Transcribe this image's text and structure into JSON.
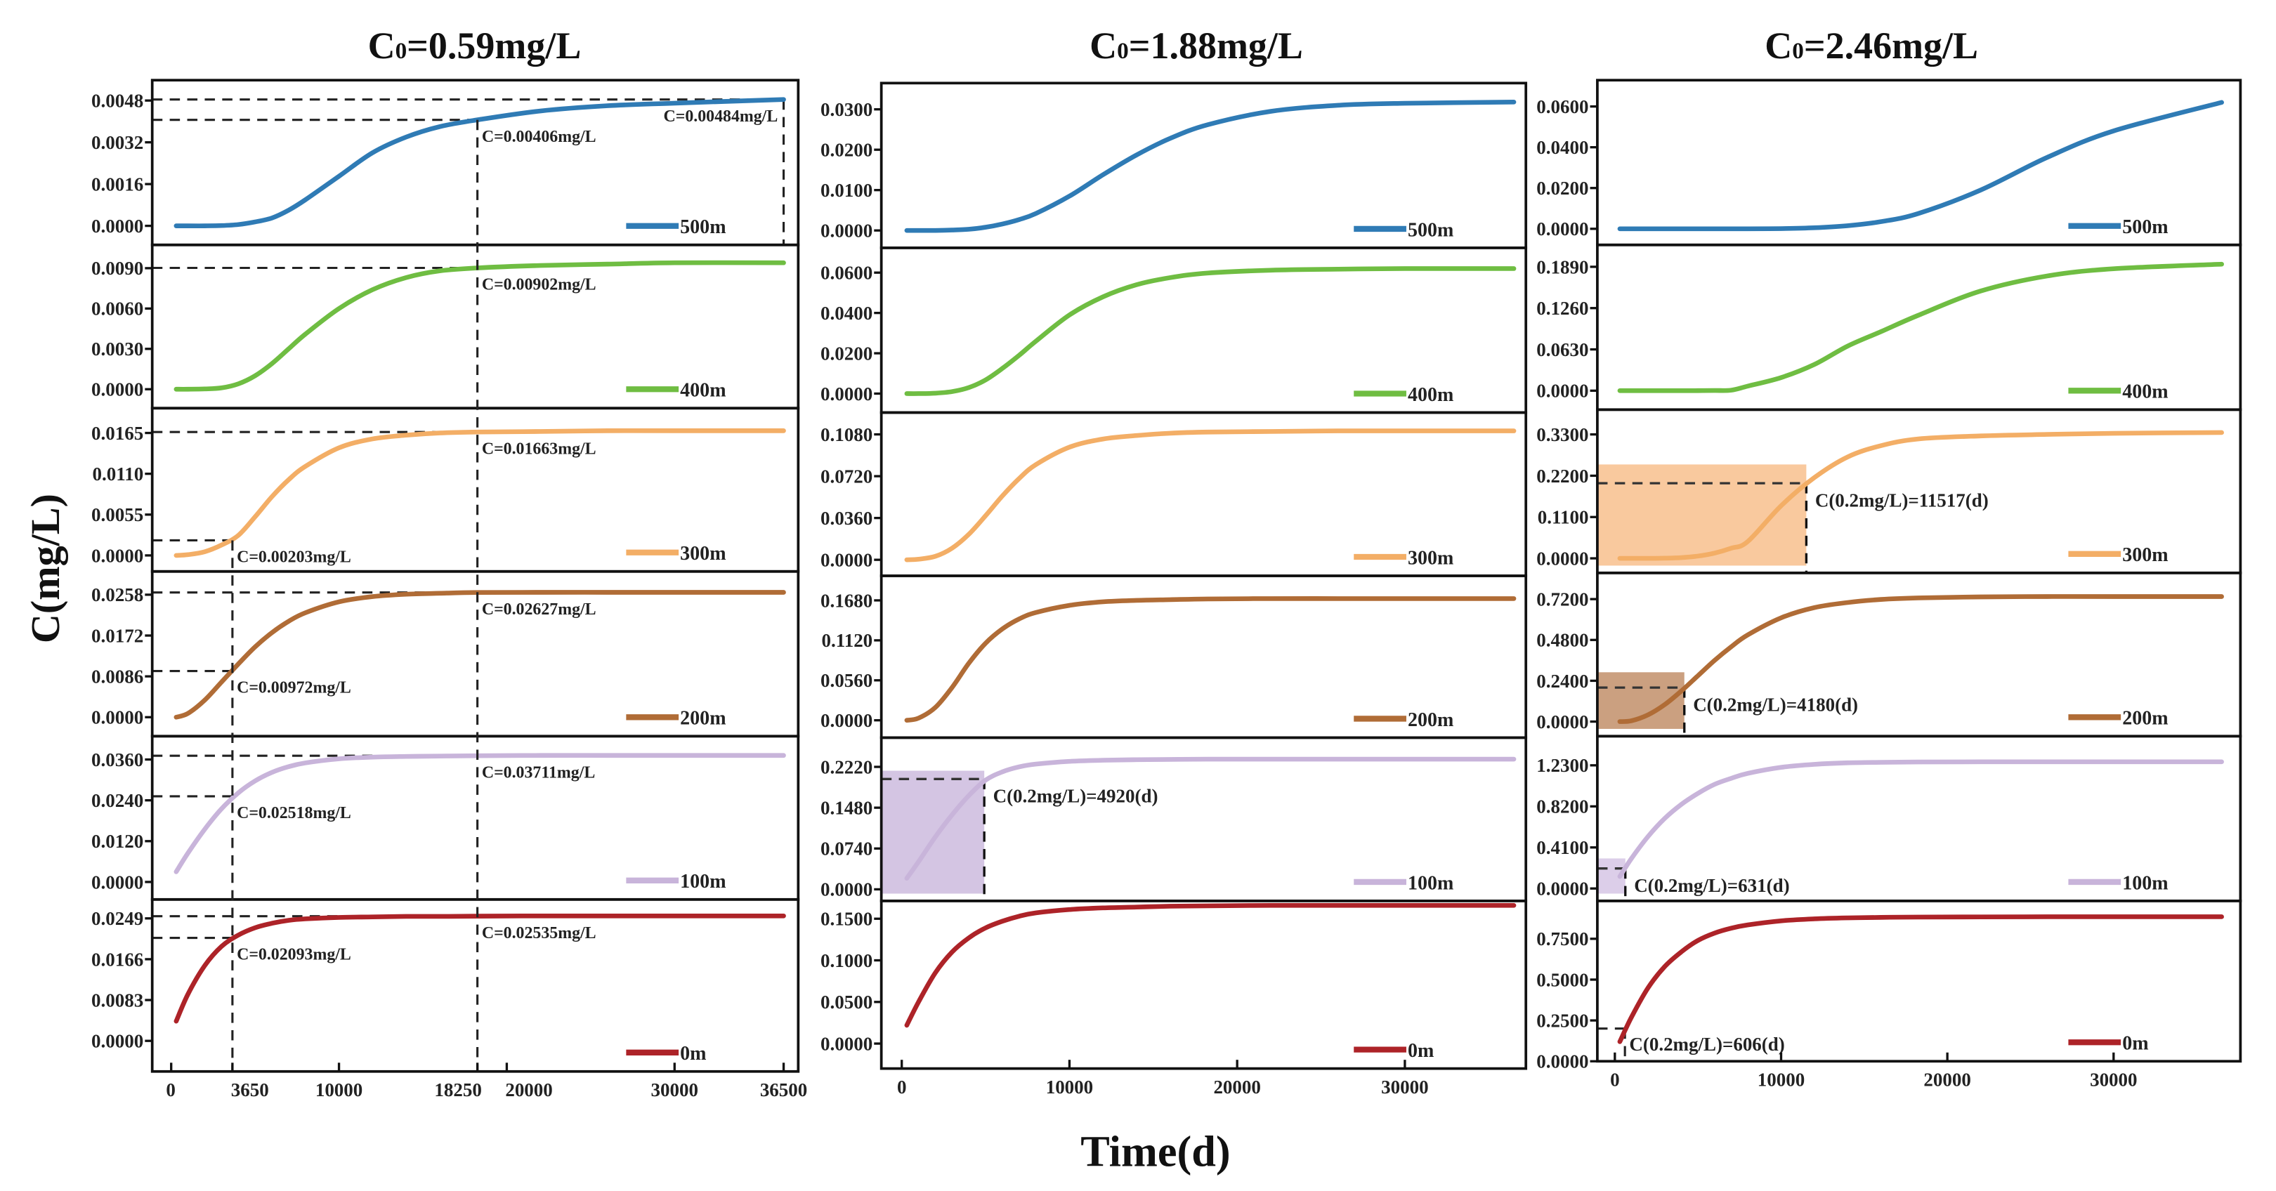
{
  "figure": {
    "xlabel": "Time(d)",
    "ylabel": "C(mg/L)"
  },
  "chart_data": [
    {
      "type": "line",
      "title": "C0=0.59mg/L",
      "xlabel": "Time(d)",
      "ylabel": "C(mg/L)",
      "xlim": [
        -1130,
        37370
      ],
      "x_ticks": [
        "0",
        "3650",
        "10000",
        "18250",
        "20000",
        "30000",
        "36500"
      ],
      "x": [
        300,
        1000,
        2000,
        3000,
        4000,
        5000,
        6000,
        7000,
        8000,
        10000,
        12000,
        14000,
        16000,
        18250,
        22000,
        26000,
        30000,
        36500
      ],
      "vlines": [
        {
          "x": 18250,
          "from_panel": 0,
          "y": 0.00406
        },
        {
          "x": 3650,
          "from_panel": 2,
          "y": 0.00203
        }
      ],
      "panels": [
        {
          "name": "500m",
          "color": "#2f7bb5",
          "ylim": [
            -0.00073,
            0.00558
          ],
          "y_ticks": [
            "0.0000",
            "0.0016",
            "0.0032",
            "0.0048"
          ],
          "values": [
            0,
            0,
            0,
            1e-05,
            5e-05,
            0.00015,
            0.0003,
            0.0006,
            0.001,
            0.0019,
            0.0028,
            0.0034,
            0.0038,
            0.00406,
            0.0044,
            0.0046,
            0.0047,
            0.00484
          ],
          "annotations": [
            {
              "x": 18250,
              "y": 0.00406,
              "label": "C=0.00406mg/L",
              "side": "right"
            },
            {
              "x": 36500,
              "y": 0.00484,
              "label": "C=0.00484mg/L",
              "side": "left",
              "vline": true
            }
          ]
        },
        {
          "name": "400m",
          "color": "#6fbd42",
          "ylim": [
            -0.00141,
            0.01073
          ],
          "y_ticks": [
            "0.0000",
            "0.0030",
            "0.0060",
            "0.0090"
          ],
          "values": [
            0,
            0,
            2e-05,
            0.0001,
            0.0004,
            0.001,
            0.0019,
            0.003,
            0.0041,
            0.006,
            0.0074,
            0.0083,
            0.0088,
            0.00902,
            0.0092,
            0.0093,
            0.0094,
            0.0094
          ],
          "annotations": [
            {
              "x": 18250,
              "y": 0.00902,
              "label": "C=0.00902mg/L",
              "side": "right"
            }
          ]
        },
        {
          "name": "300m",
          "color": "#f3ae66",
          "ylim": [
            -0.00216,
            0.01984
          ],
          "y_ticks": [
            "0.0000",
            "0.0055",
            "0.0110",
            "0.0165"
          ],
          "values": [
            0,
            0.0001,
            0.0005,
            0.0014,
            0.0027,
            0.0052,
            0.0079,
            0.0102,
            0.012,
            0.0145,
            0.0157,
            0.0162,
            0.0165,
            0.01663,
            0.0167,
            0.0168,
            0.0168,
            0.0168
          ],
          "annotations": [
            {
              "x": 3650,
              "y": 0.00203,
              "label": "C=0.00203mg/L",
              "side": "right"
            },
            {
              "x": 18250,
              "y": 0.01663,
              "label": "C=0.01663mg/L",
              "side": "right"
            }
          ]
        },
        {
          "name": "200m",
          "color": "#b06c36",
          "ylim": [
            -0.004,
            0.0307
          ],
          "y_ticks": [
            "0.0000",
            "0.0086",
            "0.0172",
            "0.0258"
          ],
          "values": [
            0,
            0.0008,
            0.0036,
            0.0074,
            0.0112,
            0.0148,
            0.0178,
            0.0202,
            0.022,
            0.0243,
            0.0254,
            0.0259,
            0.0261,
            0.02627,
            0.0263,
            0.0263,
            0.0263,
            0.0263
          ],
          "annotations": [
            {
              "x": 3650,
              "y": 0.00972,
              "label": "C=0.00972mg/L",
              "side": "right"
            },
            {
              "x": 18250,
              "y": 0.02627,
              "label": "C=0.02627mg/L",
              "side": "right"
            }
          ]
        },
        {
          "name": "100m",
          "color": "#c8b4da",
          "ylim": [
            -0.00514,
            0.04286
          ],
          "y_ticks": [
            "0.0000",
            "0.0120",
            "0.0240",
            "0.0360"
          ],
          "values": [
            0.003,
            0.0085,
            0.0155,
            0.0215,
            0.0262,
            0.0297,
            0.0322,
            0.0339,
            0.035,
            0.0362,
            0.0367,
            0.0369,
            0.037,
            0.03711,
            0.0372,
            0.0372,
            0.0372,
            0.0372
          ],
          "annotations": [
            {
              "x": 3650,
              "y": 0.02518,
              "label": "C=0.02518mg/L",
              "side": "right"
            },
            {
              "x": 18250,
              "y": 0.03711,
              "label": "C=0.03711mg/L",
              "side": "right"
            }
          ]
        },
        {
          "name": "0m",
          "color": "#ad2328",
          "ylim": [
            -0.00622,
            0.02875
          ],
          "y_ticks": [
            "0.0000",
            "0.0083",
            "0.0166",
            "0.0249"
          ],
          "values": [
            0.004,
            0.0095,
            0.0153,
            0.0192,
            0.0215,
            0.023,
            0.0239,
            0.0245,
            0.0248,
            0.0251,
            0.0252,
            0.0253,
            0.0253,
            0.02535,
            0.0254,
            0.0254,
            0.0254,
            0.0254
          ],
          "annotations": [
            {
              "x": 3650,
              "y": 0.02093,
              "label": "C=0.02093mg/L",
              "side": "right"
            },
            {
              "x": 18250,
              "y": 0.02535,
              "label": "C=0.02535mg/L",
              "side": "right"
            }
          ]
        }
      ]
    },
    {
      "type": "line",
      "title": "C0=1.88mg/L",
      "xlabel": "Time(d)",
      "ylabel": "C(mg/L)",
      "xlim": [
        -1217,
        37217
      ],
      "x_ticks": [
        "0",
        "10000",
        "20000",
        "30000"
      ],
      "x": [
        300,
        1000,
        2000,
        3000,
        4000,
        5000,
        6000,
        7000,
        8000,
        10000,
        12000,
        14000,
        16000,
        18250,
        22000,
        26000,
        30000,
        36500
      ],
      "vlines": [],
      "panels": [
        {
          "name": "500m",
          "color": "#2f7bb5",
          "ylim": [
            -0.0043,
            0.0365
          ],
          "y_ticks": [
            "0.0000",
            "0.0100",
            "0.0200",
            "0.0300"
          ],
          "values": [
            0,
            0,
            0,
            0.0001,
            0.0003,
            0.0008,
            0.0016,
            0.0027,
            0.0042,
            0.0085,
            0.0138,
            0.0187,
            0.0228,
            0.0262,
            0.0295,
            0.031,
            0.0315,
            0.0318
          ],
          "annotations": []
        },
        {
          "name": "400m",
          "color": "#6fbd42",
          "ylim": [
            -0.0094,
            0.0723
          ],
          "y_ticks": [
            "0.0000",
            "0.0200",
            "0.0400",
            "0.0600"
          ],
          "values": [
            0,
            0,
            0.0002,
            0.001,
            0.003,
            0.0068,
            0.0125,
            0.019,
            0.026,
            0.039,
            0.048,
            0.054,
            0.0575,
            0.0598,
            0.0612,
            0.0617,
            0.062,
            0.062
          ],
          "annotations": []
        },
        {
          "name": "300m",
          "color": "#f3ae66",
          "ylim": [
            -0.0138,
            0.1268
          ],
          "y_ticks": [
            "0.0000",
            "0.0360",
            "0.0720",
            "0.1080"
          ],
          "values": [
            0,
            0.0005,
            0.003,
            0.01,
            0.022,
            0.038,
            0.055,
            0.07,
            0.082,
            0.097,
            0.104,
            0.107,
            0.109,
            0.11,
            0.1105,
            0.111,
            0.111,
            0.111
          ],
          "annotations": []
        },
        {
          "name": "200m",
          "color": "#b06c36",
          "ylim": [
            -0.0243,
            0.2024
          ],
          "y_ticks": [
            "0.0000",
            "0.0560",
            "0.1120",
            "0.1680"
          ],
          "values": [
            0,
            0.003,
            0.018,
            0.046,
            0.08,
            0.108,
            0.128,
            0.142,
            0.151,
            0.161,
            0.166,
            0.168,
            0.169,
            0.17,
            0.1705,
            0.1705,
            0.1705,
            0.1705
          ],
          "annotations": []
        },
        {
          "name": "100m",
          "color": "#c8b4da",
          "ylim": [
            -0.021,
            0.275
          ],
          "y_ticks": [
            "0.0000",
            "0.0740",
            "0.1480",
            "0.2220"
          ],
          "values": [
            0.02,
            0.05,
            0.095,
            0.135,
            0.17,
            0.198,
            0.213,
            0.222,
            0.227,
            0.232,
            0.234,
            0.235,
            0.2355,
            0.236,
            0.236,
            0.236,
            0.236,
            0.236
          ],
          "annotations": [
            {
              "x": 4920,
              "y": 0.2,
              "label": "C(0.2mg/L)=4920(d)",
              "side": "right",
              "shade": true,
              "shade_top": 0.215,
              "shade_color": "#b79fd0"
            }
          ]
        },
        {
          "name": "0m",
          "color": "#ad2328",
          "ylim": [
            -0.03,
            0.1714
          ],
          "y_ticks": [
            "0.0000",
            "0.0500",
            "0.1000",
            "0.1500"
          ],
          "values": [
            0.022,
            0.05,
            0.085,
            0.11,
            0.127,
            0.139,
            0.147,
            0.153,
            0.157,
            0.161,
            0.163,
            0.164,
            0.165,
            0.1655,
            0.166,
            0.166,
            0.166,
            0.166
          ],
          "annotations": []
        }
      ]
    },
    {
      "type": "line",
      "title": "C0=2.46mg/L",
      "xlabel": "Time(d)",
      "ylabel": "C(mg/L)",
      "xlim": [
        -1053,
        37630
      ],
      "x_ticks": [
        "0",
        "10000",
        "20000",
        "30000"
      ],
      "x": [
        300,
        1000,
        2000,
        3000,
        4000,
        5000,
        6000,
        7000,
        8000,
        10000,
        12000,
        14000,
        16000,
        18250,
        22000,
        26000,
        30000,
        36500
      ],
      "vlines": [],
      "panels": [
        {
          "name": "500m",
          "color": "#2f7bb5",
          "ylim": [
            -0.0079,
            0.0729
          ],
          "y_ticks": [
            "0.0000",
            "0.0200",
            "0.0400",
            "0.0600"
          ],
          "values": [
            0,
            0,
            0,
            0,
            0,
            0,
            0,
            0,
            0,
            0.0001,
            0.0005,
            0.0015,
            0.0035,
            0.0075,
            0.019,
            0.035,
            0.048,
            0.062
          ],
          "annotations": []
        },
        {
          "name": "400m",
          "color": "#6fbd42",
          "ylim": [
            -0.0289,
            0.2224
          ],
          "y_ticks": [
            "0.0000",
            "0.0630",
            "0.1260",
            "0.1890"
          ],
          "values": [
            0,
            0,
            0,
            0,
            0,
            0.0001,
            0.0003,
            0.0008,
            0.007,
            0.02,
            0.04,
            0.068,
            0.09,
            0.115,
            0.152,
            0.175,
            0.186,
            0.193
          ],
          "annotations": []
        },
        {
          "name": "300m",
          "color": "#f3ae66",
          "ylim": [
            -0.0388,
            0.396
          ],
          "y_ticks": [
            "0.0000",
            "0.1100",
            "0.2200",
            "0.3300"
          ],
          "values": [
            0,
            0,
            0,
            0.0005,
            0.002,
            0.006,
            0.014,
            0.027,
            0.045,
            0.14,
            0.215,
            0.27,
            0.3,
            0.318,
            0.326,
            0.33,
            0.333,
            0.335
          ],
          "annotations": [
            {
              "x": 11517,
              "y": 0.2,
              "label": "C(0.2mg/L)=11517(d)",
              "side": "right",
              "shade": true,
              "shade_top": 0.25,
              "shade_color": "#f5a55e"
            }
          ]
        },
        {
          "name": "200m",
          "color": "#b06c36",
          "ylim": [
            -0.0857,
            0.874
          ],
          "y_ticks": [
            "0.0000",
            "0.2400",
            "0.4800",
            "0.7200"
          ],
          "values": [
            0,
            0.005,
            0.04,
            0.1,
            0.18,
            0.27,
            0.36,
            0.44,
            0.51,
            0.61,
            0.67,
            0.7,
            0.718,
            0.727,
            0.733,
            0.735,
            0.735,
            0.735
          ],
          "annotations": [
            {
              "x": 4180,
              "y": 0.2,
              "label": "C(0.2mg/L)=4180(d)",
              "side": "right",
              "shade": true,
              "shade_top": 0.29,
              "shade_color": "#a9602c"
            }
          ]
        },
        {
          "name": "100m",
          "color": "#c8b4da",
          "ylim": [
            -0.124,
            1.521
          ],
          "y_ticks": [
            "0.0000",
            "0.4100",
            "0.8200",
            "1.2300"
          ],
          "values": [
            0.12,
            0.3,
            0.52,
            0.7,
            0.84,
            0.95,
            1.04,
            1.1,
            1.15,
            1.21,
            1.24,
            1.255,
            1.26,
            1.263,
            1.265,
            1.265,
            1.265,
            1.265
          ],
          "annotations": [
            {
              "x": 631,
              "y": 0.2,
              "label": "C(0.2mg/L)=631(d)",
              "side": "right",
              "shade": true,
              "shade_top": 0.3,
              "shade_color": "#c4addb"
            }
          ]
        },
        {
          "name": "0m",
          "color": "#ad2328",
          "ylim": [
            0,
            0.982
          ],
          "y_ticks": [
            "0.0000",
            "0.2500",
            "0.5000",
            "0.7500"
          ],
          "values": [
            0.12,
            0.27,
            0.45,
            0.58,
            0.67,
            0.74,
            0.785,
            0.815,
            0.835,
            0.86,
            0.872,
            0.878,
            0.881,
            0.883,
            0.884,
            0.885,
            0.885,
            0.885
          ],
          "annotations": [
            {
              "x": 606,
              "y": 0.2,
              "label": "C(0.2mg/L)=606(d)",
              "side": "right"
            }
          ]
        }
      ]
    }
  ]
}
